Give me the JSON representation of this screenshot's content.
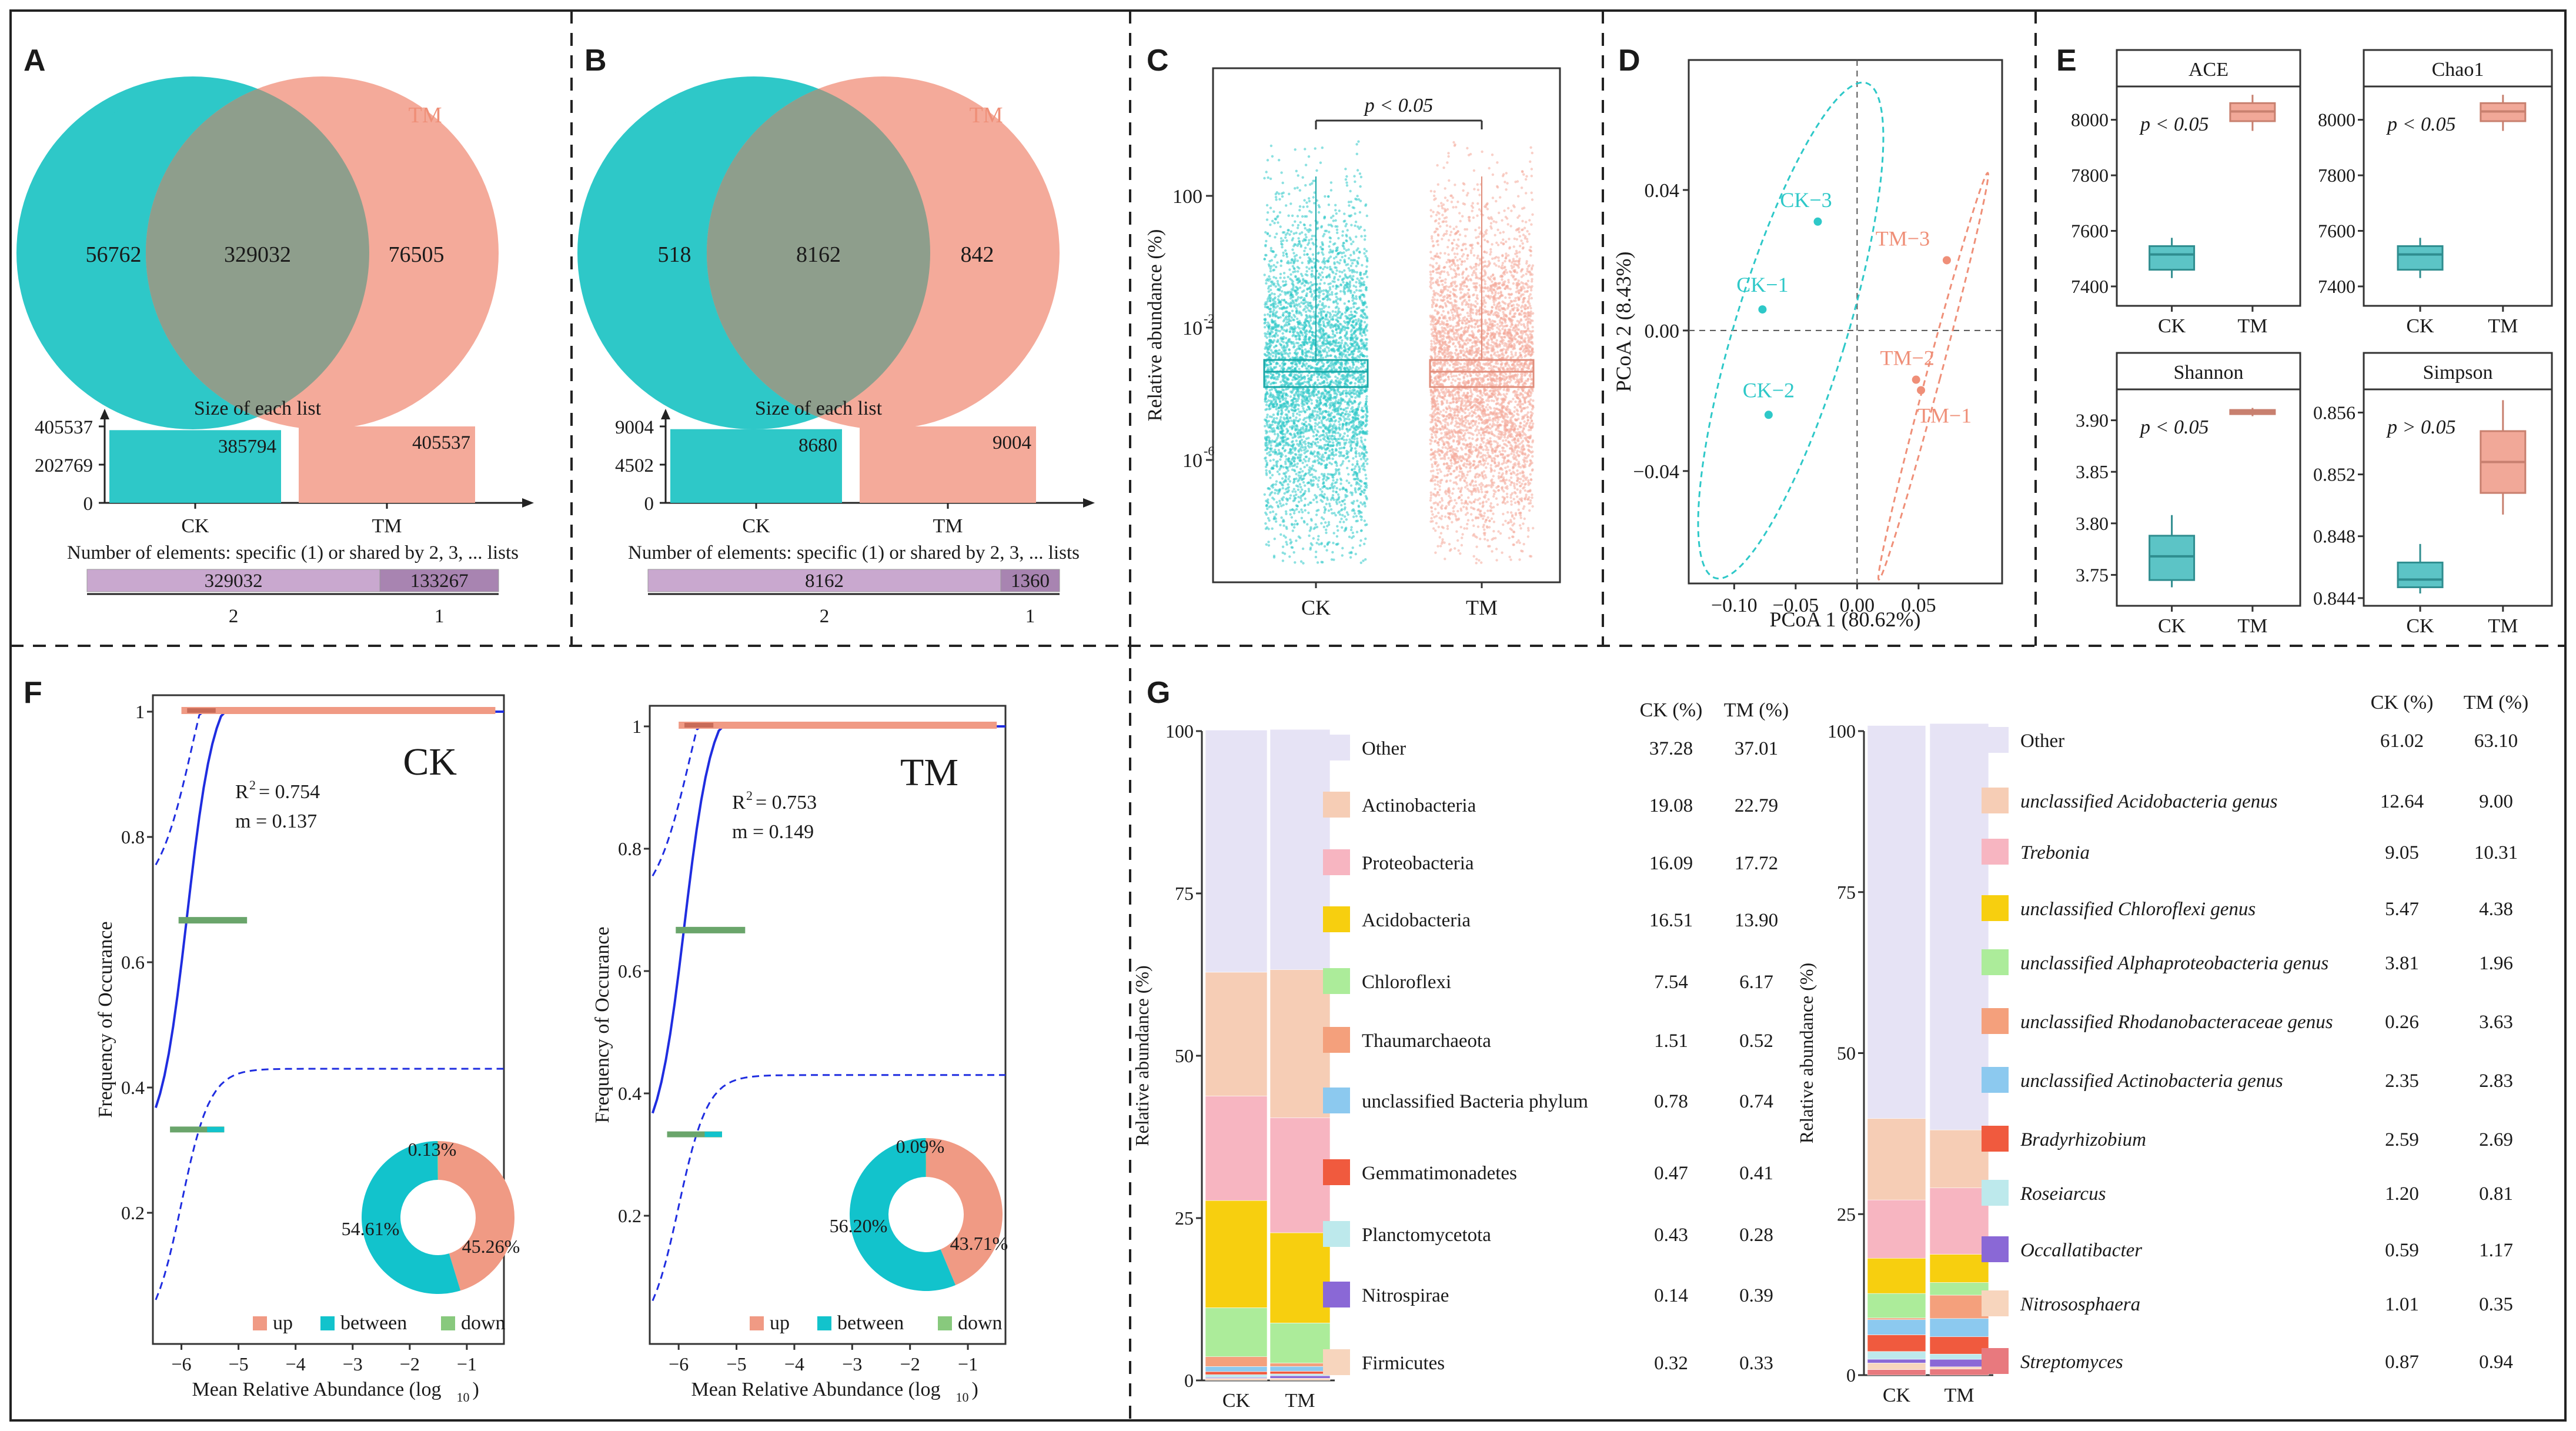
{
  "figure": {
    "panel_labels": [
      "A",
      "B",
      "C",
      "D",
      "E",
      "F",
      "G"
    ]
  },
  "colors": {
    "ck": "#2ec8c8",
    "tm": "#f4aa9a",
    "overlap": "#8e9e8c",
    "bar_purple": "#c9a8cf",
    "bar_purple_dark": "#a884b1",
    "fit_line": "#1f2de0",
    "up": "#f09a84",
    "between": "#12c3cc",
    "down": "#88c97d",
    "down_line": "#6aa56b"
  },
  "chart_data": [
    {
      "panel": "A",
      "type": "venn",
      "sets": [
        "CK",
        "TM"
      ],
      "specific": [
        56762,
        76505
      ],
      "shared": 329032,
      "size_label": "Size of each list",
      "set_sizes": [
        385794,
        405537
      ],
      "size_ticks": [
        "405537",
        "202769",
        "0"
      ],
      "elements_label": "Number of elements: specific (1) or shared by 2, 3, ... lists",
      "elements_bars": [
        {
          "key": "2",
          "value": 329032
        },
        {
          "key": "1",
          "value": 133267
        }
      ]
    },
    {
      "panel": "B",
      "type": "venn",
      "sets": [
        "CK",
        "TM"
      ],
      "specific": [
        518,
        842
      ],
      "shared": 8162,
      "size_label": "Size of each list",
      "set_sizes": [
        8680,
        9004
      ],
      "size_ticks": [
        "9004",
        "4502",
        "0"
      ],
      "elements_label": "Number of elements: specific (1) or shared by 2, 3, ... lists",
      "elements_bars": [
        {
          "key": "2",
          "value": 8162
        },
        {
          "key": "1",
          "value": 1360
        }
      ]
    },
    {
      "panel": "C",
      "type": "scatter",
      "categories": [
        "CK",
        "TM"
      ],
      "ylabel": "Relative abundance (%)",
      "y_ticks": [
        "100",
        "10",
        "10"
      ],
      "y_tick_exponents": [
        "",
        "-2",
        "-6"
      ],
      "annotation": "p < 0.05"
    },
    {
      "panel": "D",
      "type": "scatter",
      "xlabel": "PCoA 1 (80.62%)",
      "ylabel": "PCoA 2 (8.43%)",
      "x_ticks": [
        -0.1,
        -0.05,
        0.0,
        0.05
      ],
      "x_tick_labels": [
        "−0.10",
        "−0.05",
        "0.00",
        "0.05"
      ],
      "y_ticks": [
        0.04,
        0.0,
        -0.04
      ],
      "y_tick_labels": [
        "0.04",
        "0.00",
        "−0.04"
      ],
      "xlim": [
        -0.137,
        0.118
      ],
      "ylim": [
        -0.072,
        0.077
      ],
      "points": [
        {
          "name": "CK−1",
          "group": "CK",
          "x": -0.077,
          "y": 0.006
        },
        {
          "name": "CK−2",
          "group": "CK",
          "x": -0.072,
          "y": -0.024
        },
        {
          "name": "CK−3",
          "group": "CK",
          "x": -0.032,
          "y": 0.031
        },
        {
          "name": "TM−1",
          "group": "TM",
          "x": 0.052,
          "y": -0.017
        },
        {
          "name": "TM−2",
          "group": "TM",
          "x": 0.048,
          "y": -0.014
        },
        {
          "name": "TM−3",
          "group": "TM",
          "x": 0.073,
          "y": 0.02
        }
      ]
    },
    {
      "panel": "E",
      "type": "box",
      "categories": [
        "CK",
        "TM"
      ],
      "subplots": [
        {
          "title": "ACE",
          "annotation": "p < 0.05",
          "ticks": [
            7400,
            7600,
            7800,
            8000
          ],
          "tick_labels": [
            "7400",
            "7600",
            "7800",
            "8000"
          ],
          "ylim": [
            7330,
            8120
          ],
          "boxes": [
            {
              "min": 7430,
              "q1": 7460,
              "median": 7515,
              "q3": 7545,
              "max": 7575
            },
            {
              "min": 7960,
              "q1": 7995,
              "median": 8030,
              "q3": 8060,
              "max": 8090
            }
          ]
        },
        {
          "title": "Chao1",
          "annotation": "p < 0.05",
          "ticks": [
            7400,
            7600,
            7800,
            8000
          ],
          "tick_labels": [
            "7400",
            "7600",
            "7800",
            "8000"
          ],
          "ylim": [
            7330,
            8120
          ],
          "boxes": [
            {
              "min": 7430,
              "q1": 7460,
              "median": 7515,
              "q3": 7545,
              "max": 7575
            },
            {
              "min": 7960,
              "q1": 7995,
              "median": 8030,
              "q3": 8060,
              "max": 8090
            }
          ]
        },
        {
          "title": "Shannon",
          "annotation": "p < 0.05",
          "ticks": [
            3.75,
            3.8,
            3.85,
            3.9
          ],
          "tick_labels": [
            "3.75",
            "3.80",
            "3.85",
            "3.90"
          ],
          "ylim": [
            3.72,
            3.93
          ],
          "boxes": [
            {
              "min": 3.738,
              "q1": 3.745,
              "median": 3.768,
              "q3": 3.788,
              "max": 3.808
            },
            {
              "min": 3.904,
              "q1": 3.906,
              "median": 3.908,
              "q3": 3.91,
              "max": 3.912
            }
          ]
        },
        {
          "title": "Simpson",
          "annotation": "p > 0.05",
          "ticks": [
            0.844,
            0.848,
            0.852,
            0.856
          ],
          "tick_labels": [
            "0.844",
            "0.848",
            "0.852",
            "0.856"
          ],
          "ylim": [
            0.8435,
            0.8575
          ],
          "boxes": [
            {
              "min": 0.8443,
              "q1": 0.8447,
              "median": 0.8452,
              "q3": 0.8463,
              "max": 0.8475
            },
            {
              "min": 0.8494,
              "q1": 0.8508,
              "median": 0.8528,
              "q3": 0.8548,
              "max": 0.8568
            }
          ]
        }
      ]
    },
    {
      "panel": "F",
      "type": "line",
      "xlabel": "Mean Relative Abundance (log",
      "xlabel_sub": "10",
      "ylabel": "Frequency of Occurance",
      "x_ticks": [
        -6,
        -5,
        -4,
        -3,
        -2,
        -1
      ],
      "x_tick_labels": [
        "−6",
        "−5",
        "−4",
        "−3",
        "−2",
        "−1"
      ],
      "y_ticks": [
        0.2,
        0.4,
        0.6,
        0.8,
        1
      ],
      "y_tick_labels": [
        "0.2",
        "0.4",
        "0.6",
        "0.8",
        "1"
      ],
      "legend": [
        "up",
        "between",
        "down"
      ],
      "subplots": [
        {
          "title": "CK",
          "r2_prefix": "R",
          "r2_sup": "2",
          "r2_value": "= 0.754",
          "m_text": "m = 0.137",
          "ylim": [
            0,
            1
          ],
          "ticks_shown": [
            0.2,
            0.4,
            0.6,
            0.8,
            1
          ],
          "donut": [
            {
              "name": "up",
              "value": 45.26,
              "label": "45.26%"
            },
            {
              "name": "between",
              "value": 54.61,
              "label": "54.61%"
            },
            {
              "name": "down",
              "value": 0.13,
              "label": "0.13%"
            }
          ]
        },
        {
          "title": "TM",
          "r2_prefix": "R",
          "r2_sup": "2",
          "r2_value": "= 0.753",
          "m_text": "m = 0.149",
          "ylim": [
            0,
            1
          ],
          "ticks_shown": [
            0.2,
            0.4,
            0.6,
            0.8,
            1
          ],
          "donut": [
            {
              "name": "up",
              "value": 43.71,
              "label": "43.71%"
            },
            {
              "name": "between",
              "value": 56.2,
              "label": "56.20%"
            },
            {
              "name": "down",
              "value": 0.09,
              "label": "0.09%"
            }
          ]
        }
      ]
    },
    {
      "panel": "G",
      "type": "bar",
      "stacked": true,
      "categories": [
        "CK",
        "TM"
      ],
      "ylabel": "Relative abundance (%)",
      "y_ticks": [
        0,
        25,
        50,
        75,
        100
      ],
      "header": [
        "CK (%)",
        "TM (%)"
      ],
      "subplots": [
        {
          "level": "phylum",
          "series": [
            {
              "name": "Other",
              "color": "#e6e3f5",
              "ck": 37.28,
              "tm": 37.01,
              "italic": false
            },
            {
              "name": "Actinobacteria",
              "color": "#f6cdb5",
              "ck": 19.08,
              "tm": 22.79,
              "italic": false
            },
            {
              "name": "Proteobacteria",
              "color": "#f7b5c1",
              "ck": 16.09,
              "tm": 17.72,
              "italic": false
            },
            {
              "name": "Acidobacteria",
              "color": "#f7cf0f",
              "ck": 16.51,
              "tm": 13.9,
              "italic": false
            },
            {
              "name": "Chloroflexi",
              "color": "#acec9a",
              "ck": 7.54,
              "tm": 6.17,
              "italic": false
            },
            {
              "name": "Thaumarchaeota",
              "color": "#f4a07c",
              "ck": 1.51,
              "tm": 0.52,
              "italic": false
            },
            {
              "name": "unclassified Bacteria phylum",
              "color": "#8cc9ef",
              "ck": 0.78,
              "tm": 0.74,
              "italic": false
            },
            {
              "name": "Gemmatimonadetes",
              "color": "#f05a3e",
              "ck": 0.47,
              "tm": 0.41,
              "italic": false
            },
            {
              "name": "Planctomycetota",
              "color": "#bde9ec",
              "ck": 0.43,
              "tm": 0.28,
              "italic": false
            },
            {
              "name": "Nitrospirae",
              "color": "#8a68d6",
              "ck": 0.14,
              "tm": 0.39,
              "italic": false
            },
            {
              "name": "Firmicutes",
              "color": "#f7d5bd",
              "ck": 0.32,
              "tm": 0.33,
              "italic": false
            }
          ]
        },
        {
          "level": "genus",
          "series": [
            {
              "name": "Other",
              "color": "#e6e3f5",
              "ck": 61.02,
              "tm": 63.1,
              "italic": false
            },
            {
              "name": "unclassified Acidobacteria genus",
              "color": "#f6cdb5",
              "ck": 12.64,
              "tm": 9.0,
              "italic": true
            },
            {
              "name": "Trebonia",
              "color": "#f7b5c1",
              "ck": 9.05,
              "tm": 10.31,
              "italic": true
            },
            {
              "name": "unclassified Chloroflexi genus",
              "color": "#f7cf0f",
              "ck": 5.47,
              "tm": 4.38,
              "italic": true
            },
            {
              "name": "unclassified Alphaproteobacteria genus",
              "color": "#acec9a",
              "ck": 3.81,
              "tm": 1.96,
              "italic": true
            },
            {
              "name": "unclassified Rhodanobacteraceae genus",
              "color": "#f4a07c",
              "ck": 0.26,
              "tm": 3.63,
              "italic": true
            },
            {
              "name": "unclassified Actinobacteria genus",
              "color": "#8cc9ef",
              "ck": 2.35,
              "tm": 2.83,
              "italic": true
            },
            {
              "name": "Bradyrhizobium",
              "color": "#f05a3e",
              "ck": 2.59,
              "tm": 2.69,
              "italic": true
            },
            {
              "name": "Roseiarcus",
              "color": "#bde9ec",
              "ck": 1.2,
              "tm": 0.81,
              "italic": true
            },
            {
              "name": "Occallatibacter",
              "color": "#8a68d6",
              "ck": 0.59,
              "tm": 1.17,
              "italic": true
            },
            {
              "name": "Nitrososphaera",
              "color": "#f7d5bd",
              "ck": 1.01,
              "tm": 0.35,
              "italic": true
            },
            {
              "name": "Streptomyces",
              "color": "#e8797e",
              "ck": 0.87,
              "tm": 0.94,
              "italic": true
            }
          ]
        }
      ]
    }
  ]
}
